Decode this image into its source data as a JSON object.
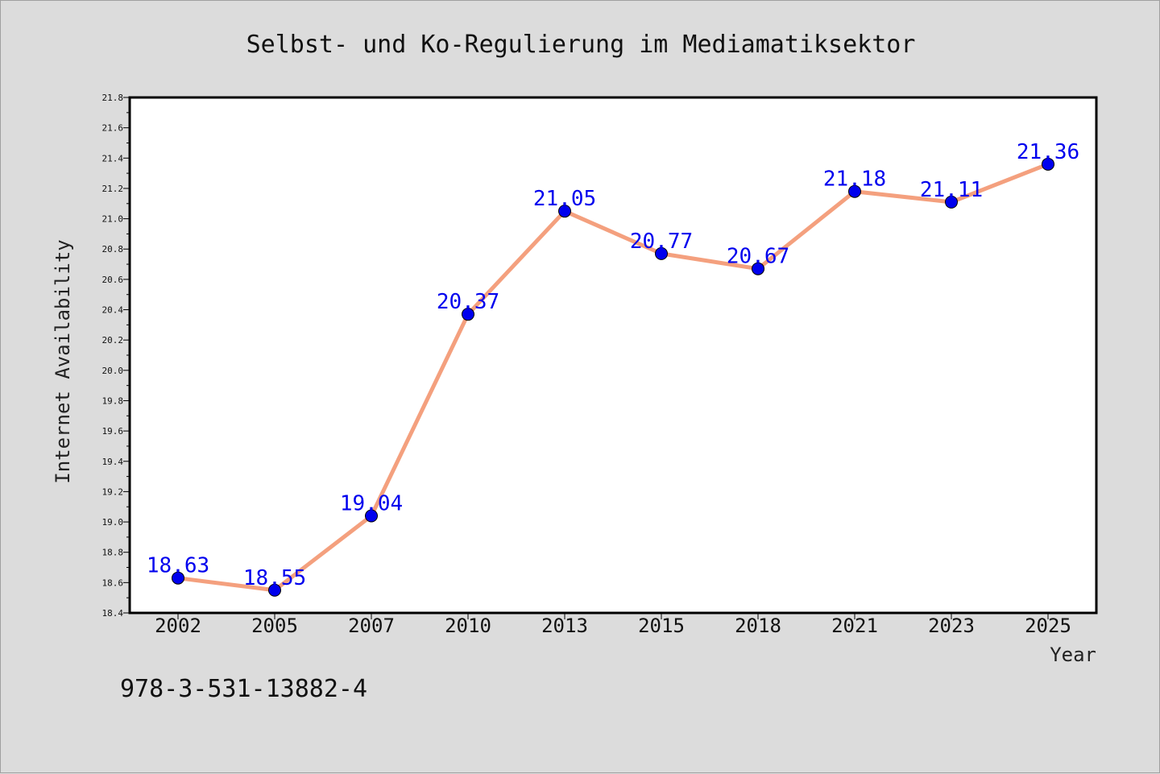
{
  "chart_data": {
    "type": "line",
    "title": "Selbst- und Ko-Regulierung im Mediamatiksektor",
    "xlabel": "Year",
    "ylabel": "Internet Availability",
    "categories": [
      "2002",
      "2005",
      "2007",
      "2010",
      "2013",
      "2015",
      "2018",
      "2021",
      "2023",
      "2025"
    ],
    "series": [
      {
        "values": [
          18.63,
          18.55,
          19.04,
          20.37,
          21.05,
          20.77,
          20.67,
          21.18,
          21.11,
          21.36
        ]
      }
    ],
    "data_labels": [
      "18.63",
      "18.55",
      "19.04",
      "20.37",
      "21.05",
      "20.77",
      "20.67",
      "21.18",
      "21.11",
      "21.36"
    ],
    "ylim": [
      18.4,
      21.8
    ],
    "yticks": [
      "18.4",
      "18.6",
      "18.8",
      "19.0",
      "19.2",
      "19.4",
      "19.6",
      "19.8",
      "20.0",
      "20.2",
      "20.4",
      "20.6",
      "20.8",
      "21.0",
      "21.2",
      "21.4",
      "21.6",
      "21.8"
    ],
    "grid": false,
    "line_color": "#f4a07e",
    "marker_color": "#0000ee",
    "label_color": "#0000ee",
    "background": "#dcdcdc",
    "plot_background": "#ffffff"
  },
  "footer": {
    "isbn": "978-3-531-13882-4"
  }
}
